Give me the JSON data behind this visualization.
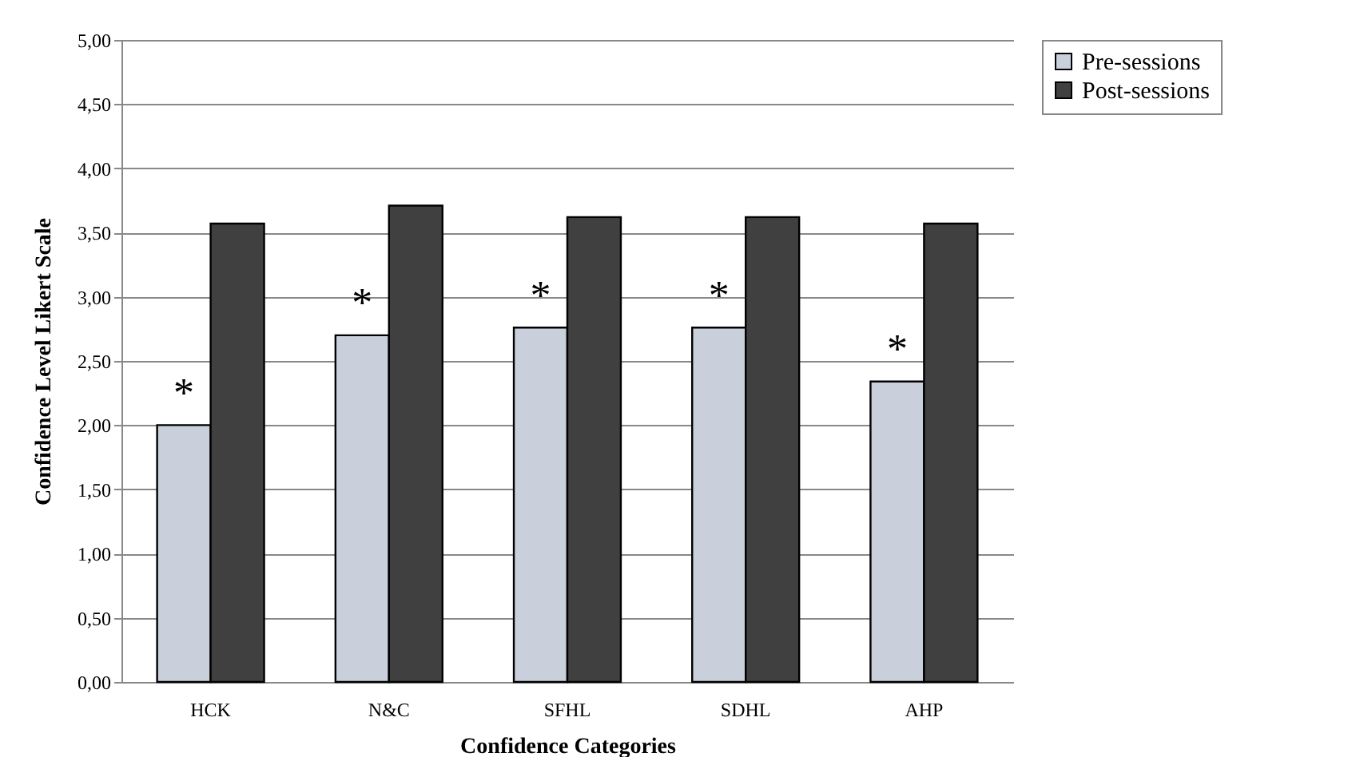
{
  "chart_data": {
    "type": "bar",
    "xlabel": "Confidence Categories",
    "ylabel": "Confidence Level Likert Scale",
    "categories": [
      "HCK",
      "N&C",
      "SFHL",
      "SDHL",
      "AHP"
    ],
    "series": [
      {
        "name": "Pre-sessions",
        "color": "#c9d0db",
        "values": [
          2.0,
          2.7,
          2.76,
          2.76,
          2.34
        ]
      },
      {
        "name": "Post-sessions",
        "color": "#404040",
        "values": [
          3.57,
          3.71,
          3.62,
          3.62,
          3.57
        ]
      }
    ],
    "ylim": [
      0,
      5
    ],
    "yticks": [
      {
        "value": 0,
        "label": "0,00"
      },
      {
        "value": 0.5,
        "label": "0,50"
      },
      {
        "value": 1,
        "label": "1,00"
      },
      {
        "value": 1.5,
        "label": "1,50"
      },
      {
        "value": 2,
        "label": "2,00"
      },
      {
        "value": 2.5,
        "label": "2,50"
      },
      {
        "value": 3,
        "label": "3,00"
      },
      {
        "value": 3.5,
        "label": "3,50"
      },
      {
        "value": 4,
        "label": "4,00"
      },
      {
        "value": 4.5,
        "label": "4,50"
      },
      {
        "value": 5,
        "label": "5,00"
      }
    ],
    "annotations": [
      {
        "text": "*",
        "x": "HCK",
        "y": 2.32
      },
      {
        "text": "*",
        "x": "N&C",
        "y": 3.02
      },
      {
        "text": "*",
        "x": "SFHL",
        "y": 3.08
      },
      {
        "text": "*",
        "x": "SDHL",
        "y": 3.08
      },
      {
        "text": "*",
        "x": "AHP",
        "y": 2.66
      }
    ],
    "grid": "y",
    "legend": "right"
  }
}
